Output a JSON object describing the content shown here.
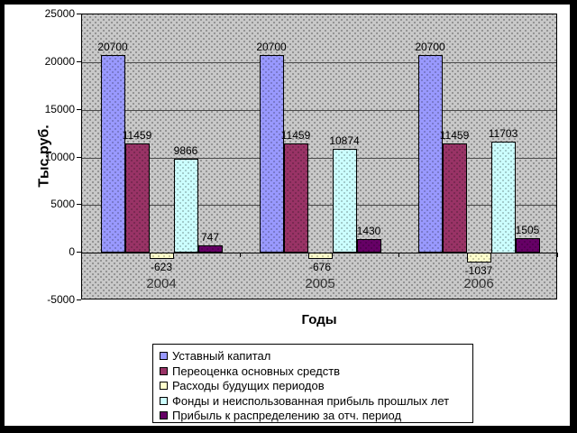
{
  "chart_data": {
    "type": "bar",
    "title": "",
    "xlabel": "Годы",
    "ylabel": "Тыс.руб.",
    "categories": [
      "2004",
      "2005",
      "2006"
    ],
    "series": [
      {
        "name": "Уставный капитал",
        "color": "#9999FF",
        "values": [
          20700,
          20700,
          20700
        ]
      },
      {
        "name": "Переоценка основных средств",
        "color": "#993366",
        "values": [
          11459,
          11459,
          11459
        ]
      },
      {
        "name": "Расходы будущих периодов",
        "color": "#FFFFCC",
        "values": [
          -623,
          -676,
          -1037
        ]
      },
      {
        "name": "Фонды и неиспользованная прибыль прошлых лет",
        "color": "#CCFFFF",
        "values": [
          9866,
          10874,
          11703
        ]
      },
      {
        "name": "Прибыль к распределению за отч. период",
        "color": "#660066",
        "values": [
          747,
          1430,
          1505
        ]
      }
    ],
    "ylim": [
      -5000,
      25000
    ],
    "yticks": [
      -5000,
      0,
      5000,
      10000,
      15000,
      20000,
      25000
    ],
    "grid": true,
    "data_labels": true,
    "legend_position": "bottom",
    "plot_bg_color": "#C9C9C9",
    "frame_color": "#000000"
  }
}
